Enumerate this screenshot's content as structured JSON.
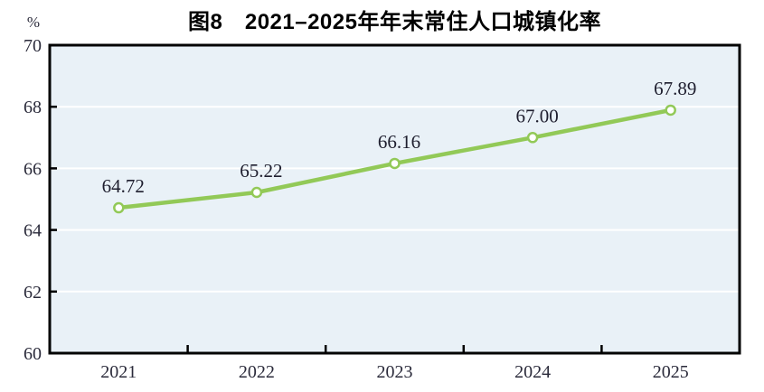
{
  "chart_data": {
    "type": "line",
    "title": "图8　2021–2025年年末常住人口城镇化率",
    "unit": "%",
    "categories": [
      "2021",
      "2022",
      "2023",
      "2024",
      "2025"
    ],
    "series": [
      {
        "name": "年末常住人口城镇化率",
        "values": [
          64.72,
          65.22,
          66.16,
          67.0,
          67.89
        ],
        "point_labels": [
          "64.72",
          "65.22",
          "66.16",
          "67.00",
          "67.89"
        ]
      }
    ],
    "ylim": [
      60,
      70
    ],
    "yticks": [
      60,
      62,
      64,
      66,
      68,
      70
    ],
    "grid": "horizontal-white",
    "legend": "none",
    "colors": {
      "line": "#92c957",
      "marker_fill": "#ffffff",
      "marker_stroke": "#92c957",
      "plot_background": "#e9f1f7",
      "gridline": "#ffffff",
      "axis_frame": "#000000",
      "text": "#2b2b3b"
    }
  }
}
